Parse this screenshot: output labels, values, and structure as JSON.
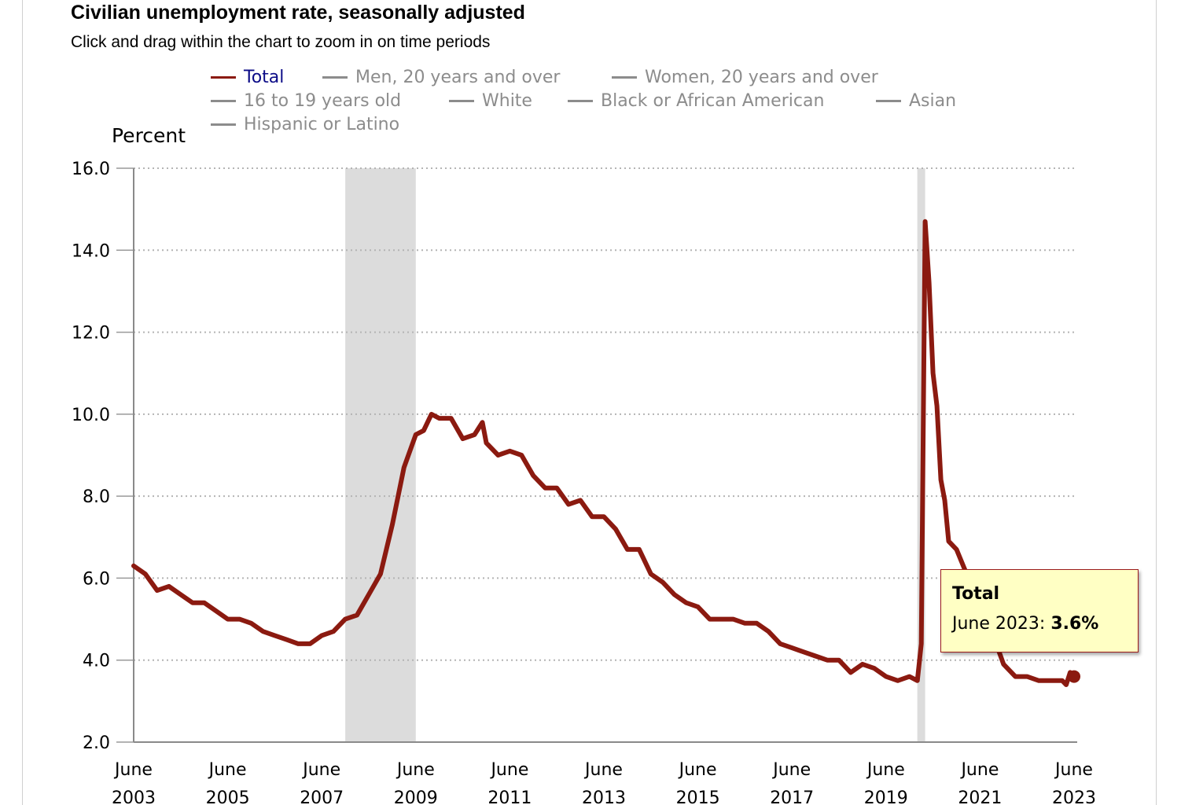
{
  "title": "Civilian unemployment rate, seasonally adjusted",
  "subtitle": "Click and drag within the chart to zoom in on time periods",
  "legend": {
    "row1": [
      {
        "label": "Total",
        "color": "#8b1a10",
        "active": true
      },
      {
        "label": "Men, 20 years and over",
        "color": "#8c8c8c",
        "active": false
      },
      {
        "label": "Women, 20 years and over",
        "color": "#8c8c8c",
        "active": false
      }
    ],
    "row2": [
      {
        "label": "16 to 19 years old",
        "color": "#8c8c8c",
        "active": false
      },
      {
        "label": "White",
        "color": "#8c8c8c",
        "active": false
      },
      {
        "label": "Black or African American",
        "color": "#8c8c8c",
        "active": false
      },
      {
        "label": "Asian",
        "color": "#8c8c8c",
        "active": false
      }
    ],
    "row3": [
      {
        "label": "Hispanic or Latino",
        "color": "#8c8c8c",
        "active": false
      }
    ]
  },
  "tooltip": {
    "series": "Total",
    "date": "June 2023",
    "value": "3.6%"
  },
  "chart_data": {
    "type": "line",
    "ylabel": "Percent",
    "ylim": [
      2.0,
      16.0
    ],
    "y_ticks": [
      "16.0",
      "14.0",
      "12.0",
      "10.0",
      "8.0",
      "6.0",
      "4.0",
      "2.0"
    ],
    "x_ticks": [
      {
        "month": "June",
        "year": "2003"
      },
      {
        "month": "June",
        "year": "2005"
      },
      {
        "month": "June",
        "year": "2007"
      },
      {
        "month": "June",
        "year": "2009"
      },
      {
        "month": "June",
        "year": "2011"
      },
      {
        "month": "June",
        "year": "2013"
      },
      {
        "month": "June",
        "year": "2015"
      },
      {
        "month": "June",
        "year": "2017"
      },
      {
        "month": "June",
        "year": "2019"
      },
      {
        "month": "June",
        "year": "2021"
      },
      {
        "month": "June",
        "year": "2023"
      }
    ],
    "grid": true,
    "series_color": "#8b1a10",
    "recessions": [
      {
        "start": "2007-12",
        "end": "2009-06"
      },
      {
        "start": "2020-02",
        "end": "2020-04"
      }
    ],
    "series": [
      {
        "name": "Total",
        "points": [
          [
            "2003-06",
            6.3
          ],
          [
            "2003-09",
            6.1
          ],
          [
            "2003-12",
            5.7
          ],
          [
            "2004-03",
            5.8
          ],
          [
            "2004-06",
            5.6
          ],
          [
            "2004-09",
            5.4
          ],
          [
            "2004-12",
            5.4
          ],
          [
            "2005-03",
            5.2
          ],
          [
            "2005-06",
            5.0
          ],
          [
            "2005-09",
            5.0
          ],
          [
            "2005-12",
            4.9
          ],
          [
            "2006-03",
            4.7
          ],
          [
            "2006-06",
            4.6
          ],
          [
            "2006-09",
            4.5
          ],
          [
            "2006-12",
            4.4
          ],
          [
            "2007-03",
            4.4
          ],
          [
            "2007-06",
            4.6
          ],
          [
            "2007-09",
            4.7
          ],
          [
            "2007-12",
            5.0
          ],
          [
            "2008-03",
            5.1
          ],
          [
            "2008-06",
            5.6
          ],
          [
            "2008-09",
            6.1
          ],
          [
            "2008-12",
            7.3
          ],
          [
            "2009-03",
            8.7
          ],
          [
            "2009-06",
            9.5
          ],
          [
            "2009-08",
            9.6
          ],
          [
            "2009-10",
            10.0
          ],
          [
            "2009-12",
            9.9
          ],
          [
            "2010-03",
            9.9
          ],
          [
            "2010-06",
            9.4
          ],
          [
            "2010-09",
            9.5
          ],
          [
            "2010-11",
            9.8
          ],
          [
            "2010-12",
            9.3
          ],
          [
            "2011-03",
            9.0
          ],
          [
            "2011-06",
            9.1
          ],
          [
            "2011-09",
            9.0
          ],
          [
            "2011-12",
            8.5
          ],
          [
            "2012-03",
            8.2
          ],
          [
            "2012-06",
            8.2
          ],
          [
            "2012-09",
            7.8
          ],
          [
            "2012-12",
            7.9
          ],
          [
            "2013-03",
            7.5
          ],
          [
            "2013-06",
            7.5
          ],
          [
            "2013-09",
            7.2
          ],
          [
            "2013-12",
            6.7
          ],
          [
            "2014-03",
            6.7
          ],
          [
            "2014-06",
            6.1
          ],
          [
            "2014-09",
            5.9
          ],
          [
            "2014-12",
            5.6
          ],
          [
            "2015-03",
            5.4
          ],
          [
            "2015-06",
            5.3
          ],
          [
            "2015-09",
            5.0
          ],
          [
            "2015-12",
            5.0
          ],
          [
            "2016-03",
            5.0
          ],
          [
            "2016-06",
            4.9
          ],
          [
            "2016-09",
            4.9
          ],
          [
            "2016-12",
            4.7
          ],
          [
            "2017-03",
            4.4
          ],
          [
            "2017-06",
            4.3
          ],
          [
            "2017-09",
            4.2
          ],
          [
            "2017-12",
            4.1
          ],
          [
            "2018-03",
            4.0
          ],
          [
            "2018-06",
            4.0
          ],
          [
            "2018-09",
            3.7
          ],
          [
            "2018-12",
            3.9
          ],
          [
            "2019-03",
            3.8
          ],
          [
            "2019-06",
            3.6
          ],
          [
            "2019-09",
            3.5
          ],
          [
            "2019-12",
            3.6
          ],
          [
            "2020-02",
            3.5
          ],
          [
            "2020-03",
            4.4
          ],
          [
            "2020-04",
            14.7
          ],
          [
            "2020-05",
            13.2
          ],
          [
            "2020-06",
            11.0
          ],
          [
            "2020-07",
            10.2
          ],
          [
            "2020-08",
            8.4
          ],
          [
            "2020-09",
            7.9
          ],
          [
            "2020-10",
            6.9
          ],
          [
            "2020-12",
            6.7
          ],
          [
            "2021-03",
            6.0
          ],
          [
            "2021-06",
            5.9
          ],
          [
            "2021-09",
            4.7
          ],
          [
            "2021-12",
            3.9
          ],
          [
            "2022-03",
            3.6
          ],
          [
            "2022-06",
            3.6
          ],
          [
            "2022-09",
            3.5
          ],
          [
            "2022-12",
            3.5
          ],
          [
            "2023-03",
            3.5
          ],
          [
            "2023-04",
            3.4
          ],
          [
            "2023-05",
            3.7
          ],
          [
            "2023-06",
            3.6
          ]
        ]
      }
    ]
  }
}
